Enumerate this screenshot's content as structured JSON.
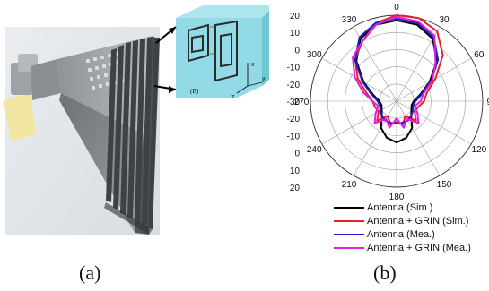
{
  "figure": {
    "caption_a": "(a)",
    "caption_b": "(b)"
  },
  "inset": {
    "label": "(B)",
    "axis_x": "x",
    "axis_y": "y",
    "axis_z": "z"
  },
  "chart_data": {
    "type": "polar-line",
    "angle_ticks": [
      "0",
      "30",
      "60",
      "90",
      "120",
      "150",
      "180",
      "210",
      "240",
      "270",
      "300",
      "330"
    ],
    "radial_ticks_upper": [
      "20",
      "10",
      "0",
      "-10",
      "-20"
    ],
    "radial_ticks_lower": [
      "-30",
      "-20",
      "-10",
      "0",
      "10",
      "20"
    ],
    "radial_range_db": [
      -30,
      20
    ],
    "grid": true,
    "legend_position": "bottom",
    "series": [
      {
        "name": "Antenna (Sim.)",
        "color": "#000000",
        "angles_deg": [
          0,
          15,
          30,
          45,
          60,
          75,
          90,
          105,
          120,
          135,
          150,
          165,
          180,
          195,
          210,
          225,
          240,
          255,
          270,
          285,
          300,
          315,
          330,
          345
        ],
        "values_db": [
          17,
          16,
          12,
          3,
          -8,
          -16,
          -20,
          -21,
          -20,
          -18,
          -12,
          -8,
          -6,
          -8,
          -12,
          -18,
          -20,
          -21,
          -20,
          -16,
          -8,
          3,
          12,
          16
        ]
      },
      {
        "name": "Antenna + GRIN (Sim.)",
        "color": "#e8202a",
        "angles_deg": [
          0,
          15,
          30,
          45,
          60,
          75,
          90,
          105,
          120,
          135,
          150,
          165,
          180,
          195,
          210,
          225,
          240,
          255,
          270,
          285,
          300,
          315,
          330,
          345
        ],
        "values_db": [
          20,
          20,
          17,
          8,
          -4,
          -12,
          -14,
          -17,
          -18,
          -14,
          -20,
          -16,
          -18,
          -16,
          -20,
          -14,
          -18,
          -17,
          -16,
          -12,
          -4,
          4,
          10,
          17
        ]
      },
      {
        "name": "Antenna (Mea.)",
        "color": "#1f1fd0",
        "angles_deg": [
          0,
          15,
          30,
          45,
          60,
          75,
          90,
          105,
          120,
          135,
          150,
          165,
          180,
          195,
          210,
          225,
          240,
          255,
          270,
          285,
          300,
          315,
          330,
          345
        ],
        "values_db": [
          18,
          17,
          13,
          4,
          -7,
          -15,
          -19,
          -20,
          -19,
          -18,
          -17,
          -17,
          -17,
          -17,
          -17,
          -18,
          -19,
          -20,
          -19,
          -15,
          -7,
          4,
          13,
          17
        ]
      },
      {
        "name": "Antenna + GRIN (Mea.)",
        "color": "#e020e0",
        "angles_deg": [
          0,
          15,
          30,
          45,
          60,
          75,
          90,
          105,
          120,
          135,
          150,
          165,
          180,
          195,
          210,
          225,
          240,
          255,
          270,
          285,
          300,
          315,
          330,
          345
        ],
        "values_db": [
          19,
          18,
          14,
          2,
          -6,
          -14,
          -16,
          -19,
          -16,
          -12,
          -18,
          -14,
          -20,
          -14,
          -18,
          -12,
          -16,
          -19,
          -16,
          -10,
          -2,
          6,
          10,
          16
        ]
      }
    ]
  }
}
